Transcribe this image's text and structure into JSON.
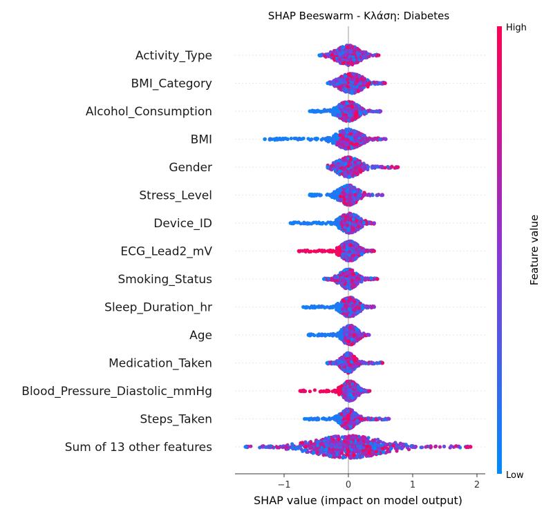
{
  "chart_data": {
    "type": "scatter",
    "subtype": "beeswarm",
    "title": "SHAP Beeswarm - Κλάση: Diabetes",
    "xlabel": "SHAP value (impact on model output)",
    "x_ticks": [
      -1,
      0,
      1,
      2
    ],
    "xlim": [
      -1.75,
      2.0
    ],
    "colorbar": {
      "label": "Feature value",
      "high": "High",
      "low": "Low",
      "high_color": "#ff0052",
      "low_color": "#008bfb"
    },
    "features": [
      {
        "name": "Activity_Type",
        "min": -0.45,
        "max": 0.47,
        "core": 0.22,
        "mode": 0.0,
        "lowbias": 0.0
      },
      {
        "name": "BMI_Category",
        "min": -0.32,
        "max": 0.57,
        "core": 0.22,
        "mode": 0.05,
        "lowbias": 0.0
      },
      {
        "name": "Alcohol_Consumption",
        "min": -0.6,
        "max": 0.5,
        "core": 0.2,
        "mode": 0.0,
        "lowbias": -1
      },
      {
        "name": "BMI",
        "min": -1.3,
        "max": 0.58,
        "core": 0.22,
        "mode": 0.0,
        "lowbias": -1
      },
      {
        "name": "Gender",
        "min": -0.32,
        "max": 0.77,
        "core": 0.22,
        "mode": 0.0,
        "lowbias": 0.0
      },
      {
        "name": "Stress_Level",
        "min": -0.6,
        "max": 0.53,
        "core": 0.18,
        "mode": 0.0,
        "lowbias": -1
      },
      {
        "name": "Device_ID",
        "min": -0.9,
        "max": 0.4,
        "core": 0.18,
        "mode": 0.02,
        "lowbias": -1
      },
      {
        "name": "ECG_Lead2_mV",
        "min": -0.77,
        "max": 0.4,
        "core": 0.16,
        "mode": 0.02,
        "lowbias": 1
      },
      {
        "name": "Smoking_Status",
        "min": -0.38,
        "max": 0.45,
        "core": 0.16,
        "mode": 0.0,
        "lowbias": 0.0
      },
      {
        "name": "Sleep_Duration_hr",
        "min": -0.7,
        "max": 0.4,
        "core": 0.16,
        "mode": 0.02,
        "lowbias": -1
      },
      {
        "name": "Age",
        "min": -0.62,
        "max": 0.32,
        "core": 0.14,
        "mode": 0.02,
        "lowbias": -1
      },
      {
        "name": "Medication_Taken",
        "min": -0.33,
        "max": 0.53,
        "core": 0.12,
        "mode": 0.0,
        "lowbias": 0.0
      },
      {
        "name": "Blood_Pressure_Diastolic_mmHg",
        "min": -0.75,
        "max": 0.33,
        "core": 0.14,
        "mode": 0.02,
        "lowbias": 1
      },
      {
        "name": "Steps_Taken",
        "min": -0.68,
        "max": 0.63,
        "core": 0.14,
        "mode": 0.0,
        "lowbias": -1
      },
      {
        "name": "Sum of 13 other features",
        "min": -1.6,
        "max": 1.9,
        "core": 0.65,
        "mode": 0.0,
        "lowbias": 0.0
      }
    ]
  }
}
